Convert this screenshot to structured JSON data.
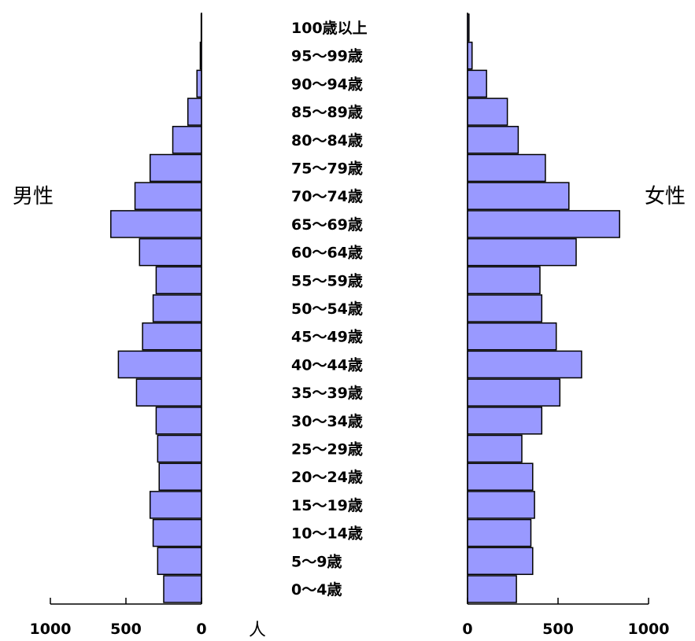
{
  "chart_data": {
    "type": "bar",
    "orientation": "horizontal-population-pyramid",
    "categories": [
      "100歳以上",
      "95～99歳",
      "90～94歳",
      "85～89歳",
      "80～84歳",
      "75～79歳",
      "70～74歳",
      "65～69歳",
      "60～64歳",
      "55～59歳",
      "50～54歳",
      "45～49歳",
      "40～44歳",
      "35～39歳",
      "30～34歳",
      "25～29歳",
      "20～24歳",
      "15～19歳",
      "10～14歳",
      "5～9歳",
      "0～4歳"
    ],
    "series": [
      {
        "name": "男性",
        "side": "left",
        "values": [
          2,
          8,
          30,
          90,
          190,
          340,
          440,
          600,
          410,
          300,
          320,
          390,
          550,
          430,
          300,
          290,
          280,
          340,
          320,
          290,
          250
        ]
      },
      {
        "name": "女性",
        "side": "right",
        "values": [
          8,
          25,
          105,
          220,
          280,
          430,
          560,
          840,
          600,
          400,
          410,
          490,
          630,
          510,
          410,
          300,
          360,
          370,
          350,
          360,
          270
        ]
      }
    ],
    "xlim": [
      0,
      1000
    ],
    "x_ticks_left": [
      "1000",
      "500",
      "0"
    ],
    "x_ticks_right": [
      "0",
      "500",
      "1000"
    ],
    "unit_label": "人",
    "left_label": "男性",
    "right_label": "女性",
    "bar_color": "#9999ff"
  }
}
